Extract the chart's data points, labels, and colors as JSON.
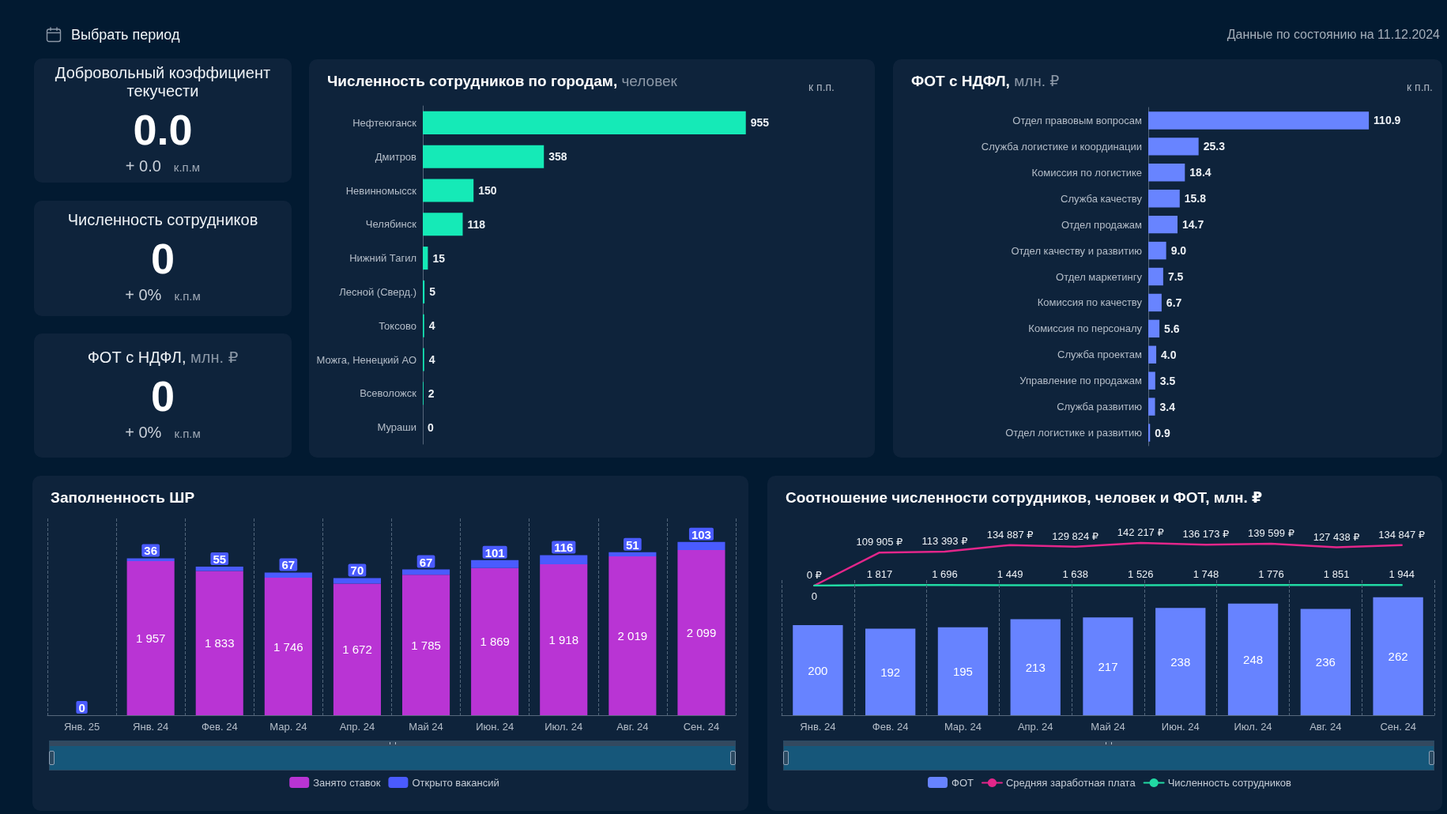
{
  "chart_data": [
    {
      "type": "other",
      "annotations": [
        "Выбрать период",
        "Данные по состоянию на 11.12.2024"
      ]
    },
    {
      "type": "other",
      "title": "Добровольный коэффициент текучести",
      "annotations": [
        "0.0",
        "+ 0.0",
        "к.п.м"
      ]
    },
    {
      "type": "other",
      "title": "Численность сотрудников",
      "annotations": [
        "0",
        "+ 0%",
        "к.п.м"
      ]
    },
    {
      "type": "other",
      "title": "ФОТ с НДФЛ,",
      "subtitle": "млн. ₽",
      "annotations": [
        "0",
        "+ 0%",
        "к.п.м"
      ]
    },
    {
      "type": "bar",
      "orientation": "horizontal",
      "title": "Численность сотрудников по городам,",
      "subtitle": "человек",
      "annotations": [
        "к п.п."
      ],
      "categories": [
        "Нефтеюганск",
        "Дмитров",
        "Невинномысск",
        "Челябинск",
        "Нижний Тагил",
        "Лесной (Сверд.)",
        "Токсово",
        "Можга, Ненецкий АО",
        "Всеволожск",
        "Мураши"
      ],
      "values": [
        955,
        358,
        150,
        118,
        15,
        5,
        4,
        4,
        2,
        0
      ],
      "color": "#15eab7",
      "data_labels": true,
      "tick_labels": "y"
    },
    {
      "type": "bar",
      "orientation": "horizontal",
      "title": "ФОТ с НДФЛ,",
      "subtitle": "млн. ₽",
      "annotations": [
        "к п.п."
      ],
      "categories": [
        "Отдел правовым вопросам",
        "Служба логистике и координации",
        "Комиссия по логистике",
        "Служба качеству",
        "Отдел продажам",
        "Отдел качеству и развитию",
        "Отдел маркетингу",
        "Комиссия по качеству",
        "Комиссия по персоналу",
        "Служба проектам",
        "Управление по продажам",
        "Служба развитию",
        "Отдел логистике и развитию"
      ],
      "values": [
        110.9,
        25.3,
        18.4,
        15.8,
        14.7,
        9.0,
        7.5,
        6.7,
        5.6,
        4.0,
        3.5,
        3.4,
        0.9
      ],
      "value_labels": [
        "110.9",
        "25.3",
        "18.4",
        "15.8",
        "14.7",
        "9.0",
        "7.5",
        "6.7",
        "5.6",
        "4.0",
        "3.5",
        "3.4",
        "0.9"
      ],
      "color": "#6884ff",
      "tick_labels": "y"
    },
    {
      "type": "bar",
      "stacked": true,
      "title": "Заполненность ШР",
      "categories": [
        "Янв. 25",
        "Янв. 24",
        "Фев. 24",
        "Мар. 24",
        "Апр. 24",
        "Май 24",
        "Июн. 24",
        "Июл. 24",
        "Авг. 24",
        "Сен. 24"
      ],
      "series": [
        {
          "name": "Занято ставок",
          "color": "#b934d4",
          "values": [
            0,
            1957,
            1833,
            1746,
            1672,
            1785,
            1869,
            1918,
            2019,
            2099
          ],
          "value_labels": [
            null,
            "1 957",
            "1 833",
            "1 746",
            "1 672",
            "1 785",
            "1 869",
            "1 918",
            "2 019",
            "2 099"
          ]
        },
        {
          "name": "Открыто вакансий",
          "color": "#4a5bff",
          "values": [
            0,
            36,
            55,
            67,
            70,
            67,
            101,
            116,
            51,
            103
          ],
          "value_labels": [
            "0",
            "36",
            "55",
            "67",
            "70",
            "67",
            "101",
            "116",
            "51",
            "103"
          ]
        }
      ],
      "grid": "x",
      "legend": "bottom",
      "tick_labels": "x"
    },
    {
      "type": "line",
      "title": "Соотношение численности сотрудников, человек и ФОТ, млн. ₽",
      "categories": [
        null,
        null,
        null,
        null,
        null,
        null,
        null,
        null,
        null,
        null
      ],
      "series": [
        {
          "name": "Средняя заработная плата",
          "color": "#e3268a",
          "values": [
            0,
            109905,
            113393,
            134887,
            129824,
            142217,
            136173,
            139599,
            127438,
            134847
          ],
          "value_labels": [
            "0 ₽",
            "109 905 ₽",
            "113 393 ₽",
            "134 887 ₽",
            "129 824 ₽",
            "142 217 ₽",
            "136 173 ₽",
            "139 599 ₽",
            "127 438 ₽",
            "134 847 ₽"
          ]
        },
        {
          "name": "Численность сотрудников",
          "color": "#21d9a3",
          "values": [
            0,
            1817,
            1696,
            1449,
            1638,
            1526,
            1748,
            1776,
            1851,
            1944
          ],
          "value_labels": [
            "0",
            "1 817",
            "1 696",
            "1 449",
            "1 638",
            "1 526",
            "1 748",
            "1 776",
            "1 851",
            "1 944"
          ]
        }
      ],
      "marker": "none",
      "legend": "bottom",
      "tick_labels": false
    },
    {
      "type": "bar",
      "categories": [
        "Янв. 24",
        "Фев. 24",
        "Мар. 24",
        "Апр. 24",
        "Май 24",
        "Июн. 24",
        "Июл. 24",
        "Авг. 24",
        "Сен. 24"
      ],
      "series": [
        {
          "name": "ФОТ",
          "color": "#6783ff",
          "values": [
            200,
            192,
            195,
            213,
            217,
            238,
            248,
            236,
            262
          ]
        }
      ],
      "data_labels": true,
      "grid": "x",
      "legend": "bottom",
      "tick_labels": "x"
    }
  ]
}
